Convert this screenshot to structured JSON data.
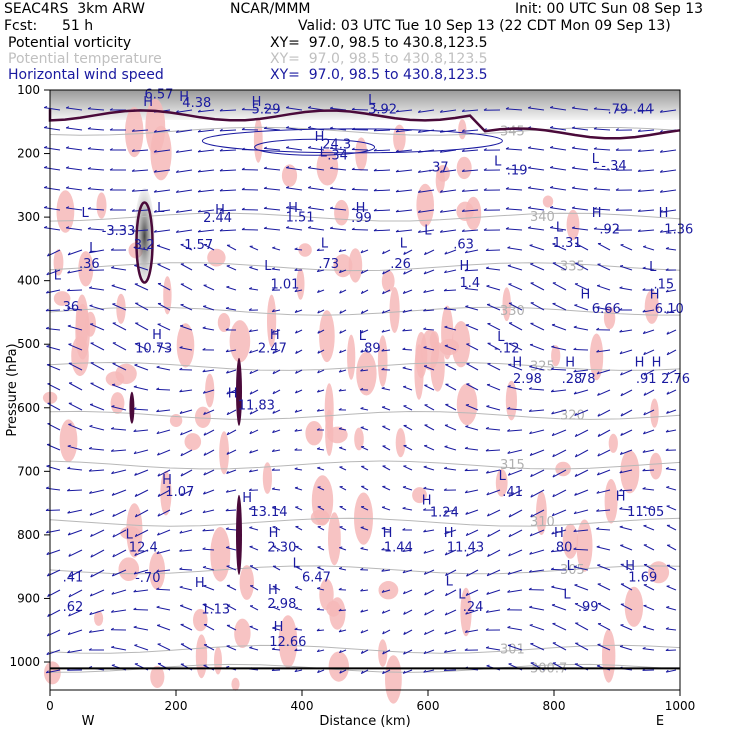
{
  "header": {
    "model": "SEAC4RS  3km ARW",
    "org": "NCAR/MMM",
    "init": "Init: 00 UTC Sun 08 Sep 13",
    "fcst_label": "Fcst:",
    "fcst_value": "51 h",
    "valid": "Valid: 03 UTC Tue 10 Sep 13 (22 CDT Mon 09 Sep 13)",
    "fields": [
      {
        "name": "Potential vorticity",
        "xy": "XY=  97.0, 98.5 to 430.8,123.5",
        "color": "#000000"
      },
      {
        "name": "Potential temperature",
        "xy": "XY=  97.0, 98.5 to 430.8,123.5",
        "color": "#c8c8c8"
      },
      {
        "name": "Horizontal wind speed",
        "xy": "XY=  97.0, 98.5 to 430.8,123.5",
        "color": "#1a1aa0"
      }
    ]
  },
  "chart_data": {
    "type": "cross-section",
    "xlabel": "Distance (km)",
    "ylabel": "Pressure (hPa)",
    "xlim": [
      0,
      1000
    ],
    "ylim": [
      1000,
      100
    ],
    "x_ticks": [
      0,
      200,
      400,
      600,
      800,
      1000
    ],
    "y_ticks": [
      100,
      200,
      300,
      400,
      500,
      600,
      700,
      800,
      900,
      1000
    ],
    "west_label": "W",
    "east_label": "E",
    "theta_isentropes": [
      {
        "label": "345",
        "p": 165
      },
      {
        "label": "340",
        "p": 300
      },
      {
        "label": "335",
        "p": 378
      },
      {
        "label": "330",
        "p": 448
      },
      {
        "label": "325",
        "p": 535
      },
      {
        "label": "320",
        "p": 612
      },
      {
        "label": "315",
        "p": 690
      },
      {
        "label": "310",
        "p": 780
      },
      {
        "label": "305",
        "p": 855
      },
      {
        "label": "301",
        "p": 980
      },
      {
        "label": "300.7",
        "p": 1010
      }
    ],
    "annotations": [
      {
        "text": "H",
        "x": 148,
        "p": 125
      },
      {
        "text": "6.57",
        "x": 150,
        "p": 113
      },
      {
        "text": "4.38",
        "x": 210,
        "p": 127
      },
      {
        "text": "H",
        "x": 205,
        "p": 117
      },
      {
        "text": "5.29",
        "x": 320,
        "p": 137
      },
      {
        "text": "H",
        "x": 320,
        "p": 125
      },
      {
        "text": "3.92",
        "x": 505,
        "p": 137
      },
      {
        "text": "L",
        "x": 505,
        "p": 122
      },
      {
        "text": ".79",
        "x": 885,
        "p": 137
      },
      {
        "text": ".44",
        "x": 925,
        "p": 137
      },
      {
        "text": "H",
        "x": 420,
        "p": 180
      },
      {
        "text": "24.3",
        "x": 432,
        "p": 192
      },
      {
        "text": "L",
        "x": 428,
        "p": 205
      },
      {
        "text": ".34",
        "x": 440,
        "p": 209
      },
      {
        "text": ".37",
        "x": 600,
        "p": 228
      },
      {
        "text": "L",
        "x": 705,
        "p": 219
      },
      {
        "text": ".19",
        "x": 725,
        "p": 233
      },
      {
        "text": "L",
        "x": 860,
        "p": 215
      },
      {
        "text": "-.34",
        "x": 875,
        "p": 226
      },
      {
        "text": "L",
        "x": 50,
        "p": 300
      },
      {
        "text": "L",
        "x": 170,
        "p": 292
      },
      {
        "text": "H",
        "x": 262,
        "p": 295
      },
      {
        "text": "H",
        "x": 378,
        "p": 292
      },
      {
        "text": "-3.33",
        "x": 82,
        "p": 328
      },
      {
        "text": "2.44",
        "x": 243,
        "p": 308
      },
      {
        "text": "1.51",
        "x": 374,
        "p": 307
      },
      {
        "text": ".99",
        "x": 478,
        "p": 308
      },
      {
        "text": "H",
        "x": 485,
        "p": 292
      },
      {
        "text": "L",
        "x": 594,
        "p": 327
      },
      {
        "text": "H",
        "x": 860,
        "p": 300
      },
      {
        "text": "H",
        "x": 966,
        "p": 300
      },
      {
        "text": ".92",
        "x": 872,
        "p": 326
      },
      {
        "text": "1.36",
        "x": 975,
        "p": 326
      },
      {
        "text": "L",
        "x": 803,
        "p": 323
      },
      {
        "text": "1.31",
        "x": 798,
        "p": 347
      },
      {
        "text": "L",
        "x": 62,
        "p": 355
      },
      {
        "text": "3.2",
        "x": 133,
        "p": 350
      },
      {
        "text": "1.57",
        "x": 213,
        "p": 350
      },
      {
        "text": "L",
        "x": 430,
        "p": 348
      },
      {
        "text": ".63",
        "x": 640,
        "p": 349
      },
      {
        "text": "L",
        "x": 555,
        "p": 348
      },
      {
        "text": ".36",
        "x": 46,
        "p": 380
      },
      {
        "text": ".73",
        "x": 426,
        "p": 380
      },
      {
        "text": ".26",
        "x": 540,
        "p": 380
      },
      {
        "text": "H",
        "x": 650,
        "p": 383
      },
      {
        "text": "L",
        "x": 340,
        "p": 383
      },
      {
        "text": "1.4",
        "x": 650,
        "p": 410
      },
      {
        "text": "1.01",
        "x": 350,
        "p": 412
      },
      {
        "text": "L",
        "x": 951,
        "p": 385
      },
      {
        "text": ".15",
        "x": 958,
        "p": 412
      },
      {
        "text": "H",
        "x": 842,
        "p": 428
      },
      {
        "text": "H",
        "x": 952,
        "p": 428
      },
      {
        "text": "L",
        "x": 6,
        "p": 398
      },
      {
        "text": "36",
        "x": 20,
        "p": 448
      },
      {
        "text": "6.66",
        "x": 860,
        "p": 451
      },
      {
        "text": "6.10",
        "x": 960,
        "p": 451
      },
      {
        "text": "H",
        "x": 162,
        "p": 492
      },
      {
        "text": "H",
        "x": 349,
        "p": 492
      },
      {
        "text": "10.73",
        "x": 135,
        "p": 513
      },
      {
        "text": "2.47",
        "x": 330,
        "p": 513
      },
      {
        "text": "L",
        "x": 490,
        "p": 493
      },
      {
        "text": ".89",
        "x": 492,
        "p": 513
      },
      {
        "text": "L",
        "x": 710,
        "p": 495
      },
      {
        "text": "-.12",
        "x": 705,
        "p": 513
      },
      {
        "text": "H",
        "x": 734,
        "p": 535
      },
      {
        "text": "H",
        "x": 818,
        "p": 535
      },
      {
        "text": "H",
        "x": 928,
        "p": 535
      },
      {
        "text": "H",
        "x": 955,
        "p": 535
      },
      {
        "text": "2.98",
        "x": 735,
        "p": 561
      },
      {
        "text": ".28",
        "x": 812,
        "p": 561
      },
      {
        "text": ".78",
        "x": 833,
        "p": 561
      },
      {
        "text": ".91",
        "x": 930,
        "p": 561
      },
      {
        "text": "2.76",
        "x": 970,
        "p": 561
      },
      {
        "text": "H",
        "x": 282,
        "p": 584
      },
      {
        "text": "11.83",
        "x": 298,
        "p": 603
      },
      {
        "text": "H",
        "x": 178,
        "p": 720
      },
      {
        "text": "1.07",
        "x": 183,
        "p": 739
      },
      {
        "text": "L",
        "x": 712,
        "p": 714
      },
      {
        "text": ".41",
        "x": 718,
        "p": 739
      },
      {
        "text": "H",
        "x": 305,
        "p": 748
      },
      {
        "text": "13.14",
        "x": 318,
        "p": 770
      },
      {
        "text": "H",
        "x": 590,
        "p": 752
      },
      {
        "text": "1.24",
        "x": 603,
        "p": 771
      },
      {
        "text": "H",
        "x": 898,
        "p": 746
      },
      {
        "text": "11.05",
        "x": 916,
        "p": 770
      },
      {
        "text": "L",
        "x": 120,
        "p": 806
      },
      {
        "text": "12.4",
        "x": 125,
        "p": 826
      },
      {
        "text": "H",
        "x": 347,
        "p": 803
      },
      {
        "text": "2.30",
        "x": 345,
        "p": 826
      },
      {
        "text": "H",
        "x": 528,
        "p": 803
      },
      {
        "text": "1.44",
        "x": 530,
        "p": 826
      },
      {
        "text": "H",
        "x": 625,
        "p": 803
      },
      {
        "text": "11.43",
        "x": 630,
        "p": 826
      },
      {
        "text": "H",
        "x": 800,
        "p": 803
      },
      {
        "text": "80",
        "x": 803,
        "p": 826
      },
      {
        "text": "L",
        "x": 820,
        "p": 855
      },
      {
        "text": "H",
        "x": 913,
        "p": 855
      },
      {
        "text": "1.69",
        "x": 918,
        "p": 873
      },
      {
        "text": "L",
        "x": 385,
        "p": 851
      },
      {
        "text": "6.47",
        "x": 400,
        "p": 873
      },
      {
        "text": "-.70",
        "x": 135,
        "p": 874
      },
      {
        "text": "H",
        "x": 230,
        "p": 882
      },
      {
        "text": "L",
        "x": 628,
        "p": 880
      },
      {
        "text": "1.13",
        "x": 240,
        "p": 924
      },
      {
        "text": "H",
        "x": 346,
        "p": 893
      },
      {
        "text": "2.98",
        "x": 345,
        "p": 915
      },
      {
        "text": "L",
        "x": 648,
        "p": 900
      },
      {
        "text": ".24",
        "x": 655,
        "p": 920
      },
      {
        "text": ".41",
        "x": 20,
        "p": 873
      },
      {
        "text": "L",
        "x": 815,
        "p": 900
      },
      {
        "text": ".99",
        "x": 838,
        "p": 920
      },
      {
        "text": ".62",
        "x": 20,
        "p": 920
      },
      {
        "text": "H",
        "x": 355,
        "p": 951
      },
      {
        "text": "12.66",
        "x": 348,
        "p": 975
      }
    ]
  }
}
